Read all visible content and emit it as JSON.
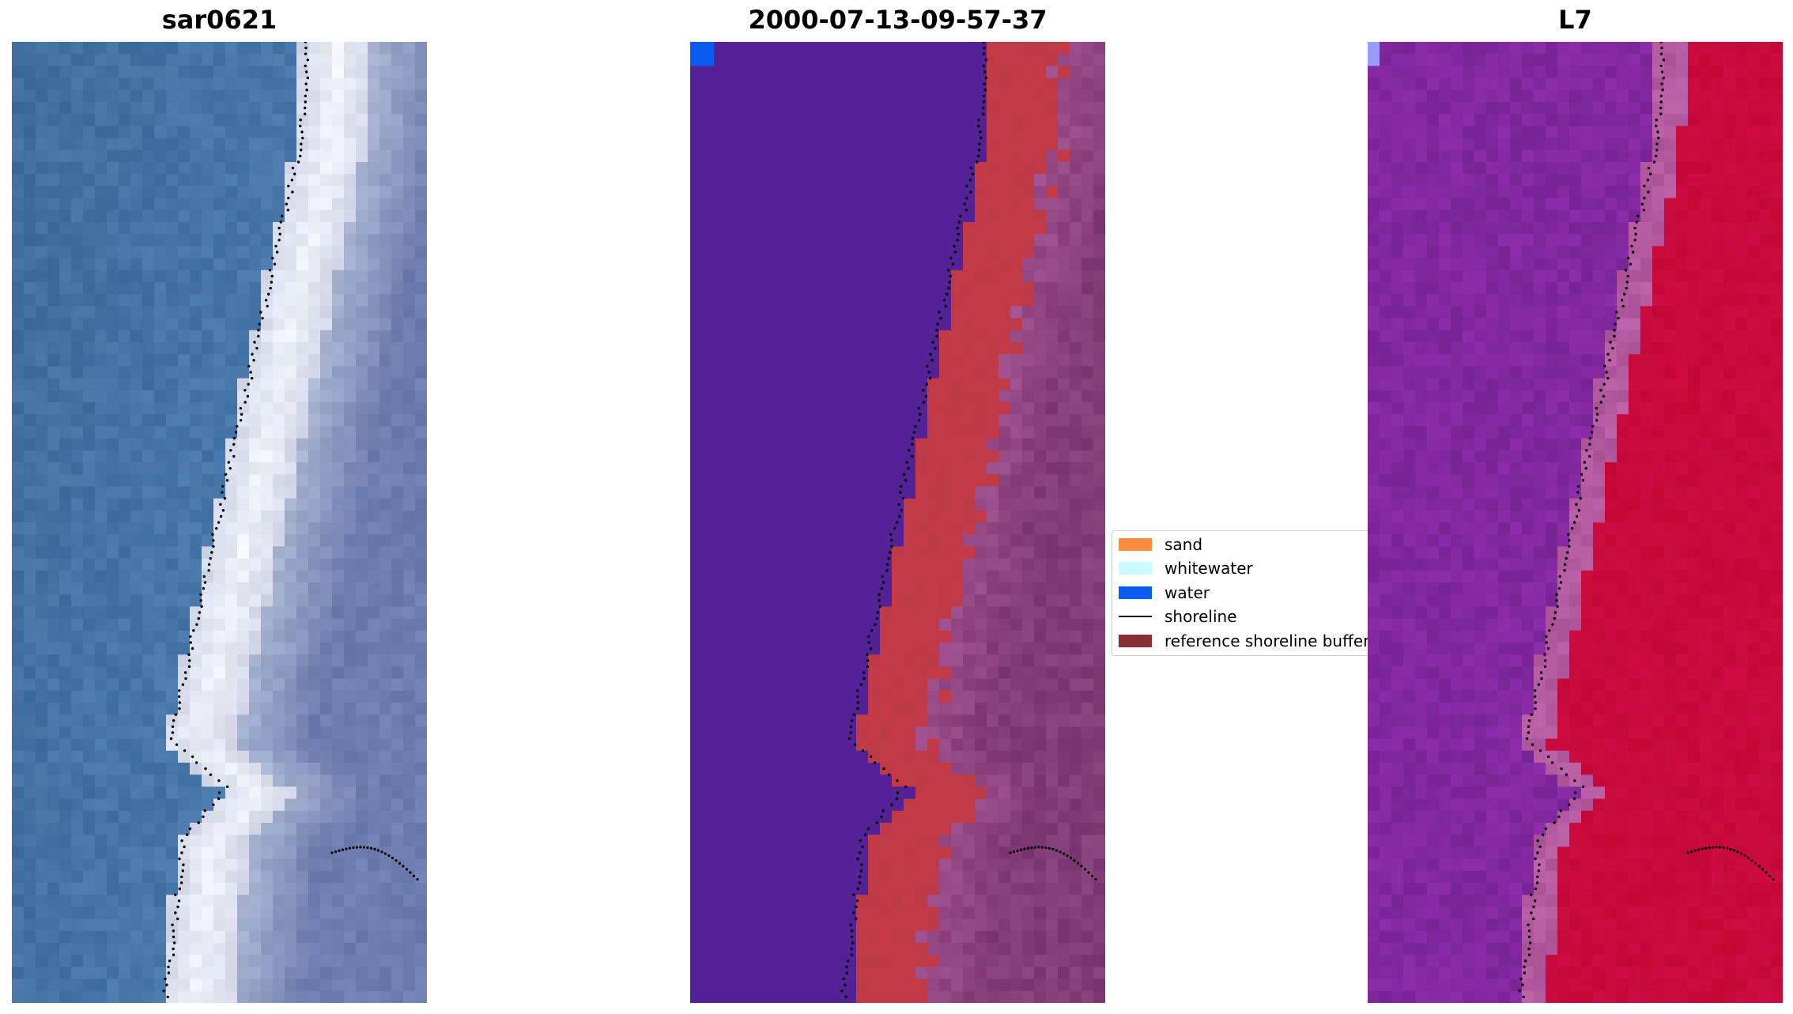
{
  "panels": [
    {
      "title": "sar0621",
      "style": "rgb"
    },
    {
      "title": "2000-07-13-09-57-37",
      "style": "classified"
    },
    {
      "title": "L7",
      "style": "index"
    }
  ],
  "legend": {
    "items": [
      {
        "label": "sand",
        "color": "#ff8c3d",
        "kind": "patch"
      },
      {
        "label": "whitewater",
        "color": "#c8fcff",
        "kind": "patch"
      },
      {
        "label": "water",
        "color": "#0a5cf0",
        "kind": "patch"
      },
      {
        "label": "shoreline",
        "color": "#000000",
        "kind": "line"
      },
      {
        "label": "reference shoreline buffer",
        "color": "#8c2c33",
        "kind": "patch"
      }
    ]
  },
  "colors": {
    "water_class": "#522296",
    "buffer_red": "#c13a47",
    "land_mauve": "#8a3a7a",
    "index_purple": "#8a2aa4",
    "index_red": "#c8083a"
  }
}
